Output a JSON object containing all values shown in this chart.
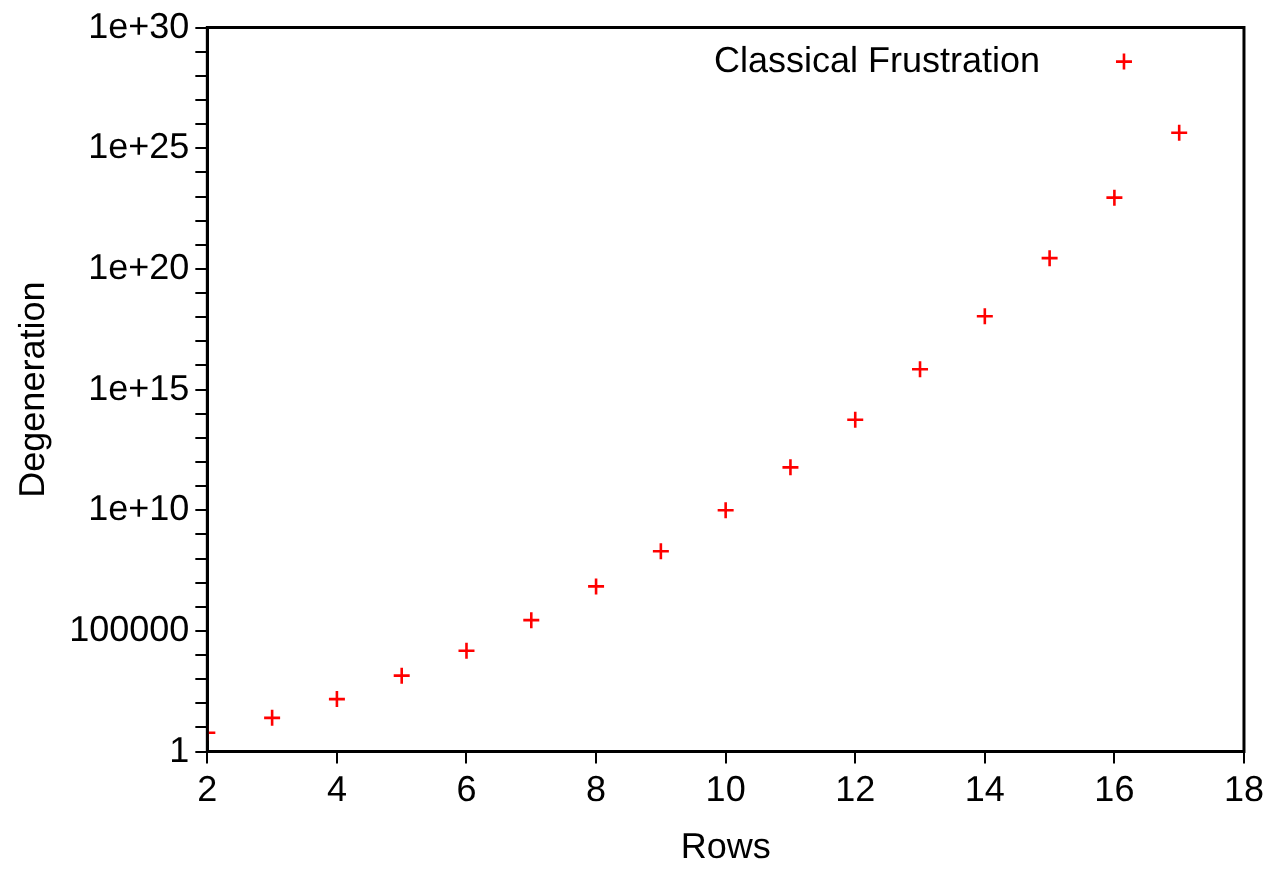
{
  "chart_data": {
    "type": "scatter",
    "xlabel": "Rows",
    "ylabel": "Degeneration",
    "log": "y",
    "marker": "cross",
    "legend": "top right",
    "grid": false,
    "x": [
      2,
      3,
      4,
      5,
      6,
      7,
      8,
      9,
      10,
      11,
      12,
      13,
      14,
      15,
      16,
      17
    ],
    "series": [
      {
        "name": "Classical Frustration",
        "color": "#ff0000",
        "values": [
          6,
          25,
          150,
          1400,
          15000,
          280000,
          7000000,
          200000000,
          10000000000,
          600000000000,
          56000000000000,
          7000000000000000,
          1.1e+18,
          2.8e+20,
          9e+22,
          4.4e+25
        ]
      }
    ],
    "xlim": [
      2,
      18
    ],
    "xticks": [
      2,
      4,
      6,
      8,
      10,
      12,
      14,
      16,
      18
    ],
    "ylim": [
      1,
      1e+30
    ],
    "yticks": [
      1,
      {
        "value": 10,
        "label": null
      },
      {
        "value": 100,
        "label": null
      },
      {
        "value": 1000,
        "label": null
      },
      {
        "value": 10000,
        "label": null
      },
      100000,
      {
        "value": 1000000.0,
        "label": null
      },
      {
        "value": 10000000.0,
        "label": null
      },
      {
        "value": 100000000.0,
        "label": null
      },
      {
        "value": 1000000000.0,
        "label": null
      },
      {
        "value": 10000000000.0,
        "label": "1e+10"
      },
      {
        "value": 100000000000.0,
        "label": null
      },
      {
        "value": 1000000000000.0,
        "label": null
      },
      {
        "value": 10000000000000.0,
        "label": null
      },
      {
        "value": 100000000000000.0,
        "label": null
      },
      {
        "value": 1000000000000000.0,
        "label": "1e+15"
      },
      {
        "value": 1e+16,
        "label": null
      },
      {
        "value": 1e+17,
        "label": null
      },
      {
        "value": 1e+18,
        "label": null
      },
      {
        "value": 1e+19,
        "label": null
      },
      {
        "value": 1e+20,
        "label": "1e+20"
      },
      {
        "value": 1e+21,
        "label": null
      },
      {
        "value": 1e+22,
        "label": null
      },
      {
        "value": 1e+23,
        "label": null
      },
      {
        "value": 1e+24,
        "label": null
      },
      {
        "value": 1e+25,
        "label": "1e+25"
      },
      {
        "value": 1e+26,
        "label": null
      },
      {
        "value": 1e+27,
        "label": null
      },
      {
        "value": 1e+28,
        "label": null
      },
      {
        "value": 1e+29,
        "label": null
      },
      {
        "value": 1e+30,
        "label": "1e+30"
      }
    ]
  }
}
